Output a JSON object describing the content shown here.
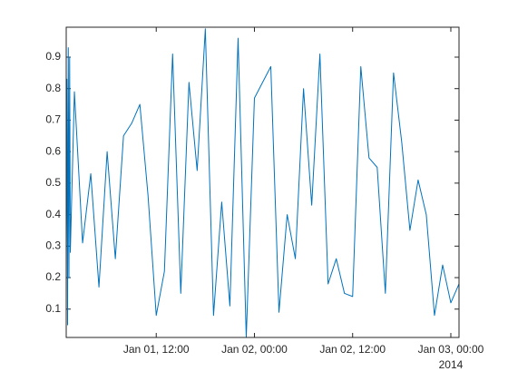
{
  "chart_data": {
    "type": "line",
    "x": [
      "2014-01-01T01:00",
      "2014-01-01T01:05",
      "2014-01-01T01:10",
      "2014-01-01T01:15",
      "2014-01-01T01:20",
      "2014-01-01T01:25",
      "2014-01-01T01:30",
      "2014-01-01T02:00",
      "2014-01-01T03:00",
      "2014-01-01T04:00",
      "2014-01-01T05:00",
      "2014-01-01T06:00",
      "2014-01-01T07:00",
      "2014-01-01T08:00",
      "2014-01-01T09:00",
      "2014-01-01T10:00",
      "2014-01-01T11:00",
      "2014-01-01T12:00",
      "2014-01-01T13:00",
      "2014-01-01T14:00",
      "2014-01-01T15:00",
      "2014-01-01T16:00",
      "2014-01-01T17:00",
      "2014-01-01T18:00",
      "2014-01-01T19:00",
      "2014-01-01T20:00",
      "2014-01-01T21:00",
      "2014-01-01T22:00",
      "2014-01-01T23:00",
      "2014-01-02T00:00",
      "2014-01-02T01:00",
      "2014-01-02T02:00",
      "2014-01-02T03:00",
      "2014-01-02T04:00",
      "2014-01-02T05:00",
      "2014-01-02T06:00",
      "2014-01-02T07:00",
      "2014-01-02T08:00",
      "2014-01-02T09:00",
      "2014-01-02T10:00",
      "2014-01-02T11:00",
      "2014-01-02T12:00",
      "2014-01-02T13:00",
      "2014-01-02T14:00",
      "2014-01-02T15:00",
      "2014-01-02T16:00",
      "2014-01-02T17:00",
      "2014-01-02T18:00",
      "2014-01-02T19:00",
      "2014-01-02T20:00",
      "2014-01-02T21:00",
      "2014-01-02T22:00",
      "2014-01-02T23:00",
      "2014-01-03T00:00",
      "2014-01-03T01:00"
    ],
    "series": [
      {
        "color": "#0072bd",
        "values": [
          0.3,
          0.83,
          0.05,
          0.93,
          0.2,
          0.9,
          0.28,
          0.79,
          0.31,
          0.53,
          0.17,
          0.6,
          0.26,
          0.65,
          0.69,
          0.75,
          0.46,
          0.08,
          0.22,
          0.91,
          0.15,
          0.82,
          0.54,
          0.99,
          0.08,
          0.44,
          0.11,
          0.96,
          0.01,
          0.77,
          0.82,
          0.87,
          0.09,
          0.4,
          0.26,
          0.8,
          0.43,
          0.91,
          0.18,
          0.26,
          0.15,
          0.14,
          0.87,
          0.58,
          0.55,
          0.15,
          0.85,
          0.63,
          0.35,
          0.51,
          0.4,
          0.08,
          0.24,
          0.12,
          0.18
        ]
      }
    ],
    "xlim": [
      "2014-01-01T01:00",
      "2014-01-03T01:00"
    ],
    "xticks": [
      {
        "value": "2014-01-01T12:00",
        "label": "Jan 01, 12:00"
      },
      {
        "value": "2014-01-02T00:00",
        "label": "Jan 02, 00:00"
      },
      {
        "value": "2014-01-02T12:00",
        "label": "Jan 02, 12:00"
      },
      {
        "value": "2014-01-03T00:00",
        "label": "Jan 03, 00:00"
      }
    ],
    "x_secondary_label": "2014",
    "ylim": [
      0.01,
      0.995
    ],
    "yticks": [
      0.1,
      0.2,
      0.3,
      0.4,
      0.5,
      0.6,
      0.7,
      0.8,
      0.9
    ],
    "grid": false
  }
}
